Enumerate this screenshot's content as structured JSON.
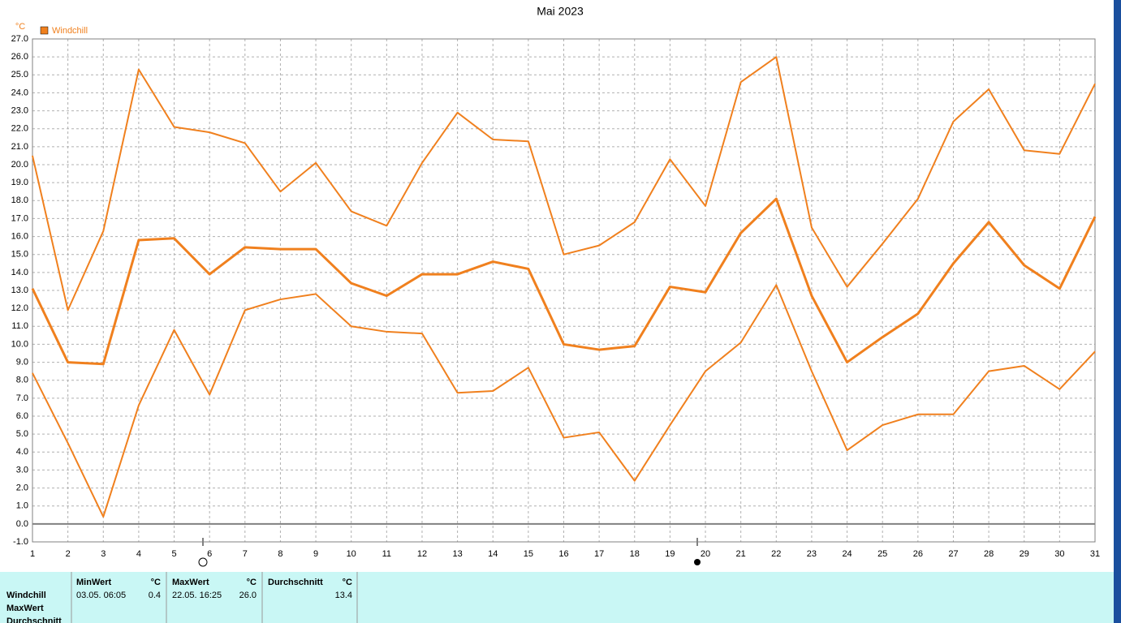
{
  "chart_data": {
    "type": "line",
    "title": "Mai 2023",
    "y_unit": "°C",
    "grid": true,
    "x": [
      1,
      2,
      3,
      4,
      5,
      6,
      7,
      8,
      9,
      10,
      11,
      12,
      13,
      14,
      15,
      16,
      17,
      18,
      19,
      20,
      21,
      22,
      23,
      24,
      25,
      26,
      27,
      28,
      29,
      30,
      31
    ],
    "xlim": [
      1,
      31
    ],
    "xticks": [
      1,
      2,
      3,
      4,
      5,
      6,
      7,
      8,
      9,
      10,
      11,
      12,
      13,
      14,
      15,
      16,
      17,
      18,
      19,
      20,
      21,
      22,
      23,
      24,
      25,
      26,
      27,
      28,
      29,
      30,
      31
    ],
    "ylim": [
      -1,
      27
    ],
    "yticks": [
      {
        "value": 27,
        "label": "27.0"
      },
      {
        "value": 26,
        "label": "26.0"
      },
      {
        "value": 25,
        "label": "25.0"
      },
      {
        "value": 24,
        "label": "24.0"
      },
      {
        "value": 23,
        "label": "23.0"
      },
      {
        "value": 22,
        "label": "22.0"
      },
      {
        "value": 21,
        "label": "21.0"
      },
      {
        "value": 20,
        "label": "20.0"
      },
      {
        "value": 19,
        "label": "19.0"
      },
      {
        "value": 18,
        "label": "18.0"
      },
      {
        "value": 17,
        "label": "17.0"
      },
      {
        "value": 16,
        "label": "16.0"
      },
      {
        "value": 15,
        "label": "15.0"
      },
      {
        "value": 14,
        "label": "14.0"
      },
      {
        "value": 13,
        "label": "13.0"
      },
      {
        "value": 12,
        "label": "12.0"
      },
      {
        "value": 11,
        "label": "11.0"
      },
      {
        "value": 10,
        "label": "10.0"
      },
      {
        "value": 9,
        "label": "9.0"
      },
      {
        "value": 8,
        "label": "8.0"
      },
      {
        "value": 7,
        "label": "7.0"
      },
      {
        "value": 6,
        "label": "6.0"
      },
      {
        "value": 5,
        "label": "5.0"
      },
      {
        "value": 4,
        "label": "4.0"
      },
      {
        "value": 3,
        "label": "3.0"
      },
      {
        "value": 2,
        "label": "2.0"
      },
      {
        "value": 1,
        "label": "1.0"
      },
      {
        "value": 0,
        "label": "0.0"
      },
      {
        "value": -1,
        "label": "-1.0"
      }
    ],
    "series": [
      {
        "name": "Windchill",
        "color": "#f0801e",
        "width": 3,
        "values": [
          13.1,
          9.0,
          8.9,
          15.8,
          15.9,
          13.9,
          15.4,
          15.3,
          15.3,
          13.4,
          12.7,
          13.9,
          13.9,
          14.6,
          14.2,
          10.0,
          9.7,
          9.9,
          13.2,
          12.9,
          16.2,
          18.1,
          12.7,
          9.0,
          10.4,
          11.7,
          14.5,
          16.8,
          14.4,
          13.1,
          17.1
        ]
      },
      {
        "color": "#f0801e",
        "width": 2,
        "values": [
          20.5,
          11.9,
          16.3,
          25.3,
          22.1,
          21.8,
          21.2,
          18.5,
          20.1,
          17.4,
          16.6,
          20.1,
          22.9,
          21.4,
          21.3,
          15.0,
          15.5,
          16.8,
          20.3,
          17.7,
          24.6,
          26.0,
          16.5,
          13.2,
          15.6,
          18.1,
          22.4,
          24.2,
          20.8,
          20.6,
          24.5
        ]
      },
      {
        "color": "#f0801e",
        "width": 2,
        "values": [
          8.4,
          4.5,
          0.4,
          6.6,
          10.8,
          7.2,
          11.9,
          12.5,
          12.8,
          11.0,
          10.7,
          10.6,
          7.3,
          7.4,
          8.7,
          4.8,
          5.1,
          2.4,
          5.5,
          8.5,
          10.1,
          13.3,
          8.5,
          4.1,
          5.5,
          6.1,
          6.1,
          8.5,
          8.8,
          7.5,
          9.6
        ]
      }
    ]
  },
  "stats_table": {
    "row_labels": [
      "Windchill",
      "MaxWert",
      "Durchschnitt"
    ],
    "columns": [
      {
        "header": "MinWert",
        "unit": "°C"
      },
      {
        "header": "MaxWert",
        "unit": "°C"
      },
      {
        "header": "Durchschnitt",
        "unit": "°C"
      }
    ],
    "rows": [
      [
        "03.05.  06:05",
        "0.4",
        "22.05.  16:25",
        "26.0",
        "13.4"
      ]
    ]
  }
}
